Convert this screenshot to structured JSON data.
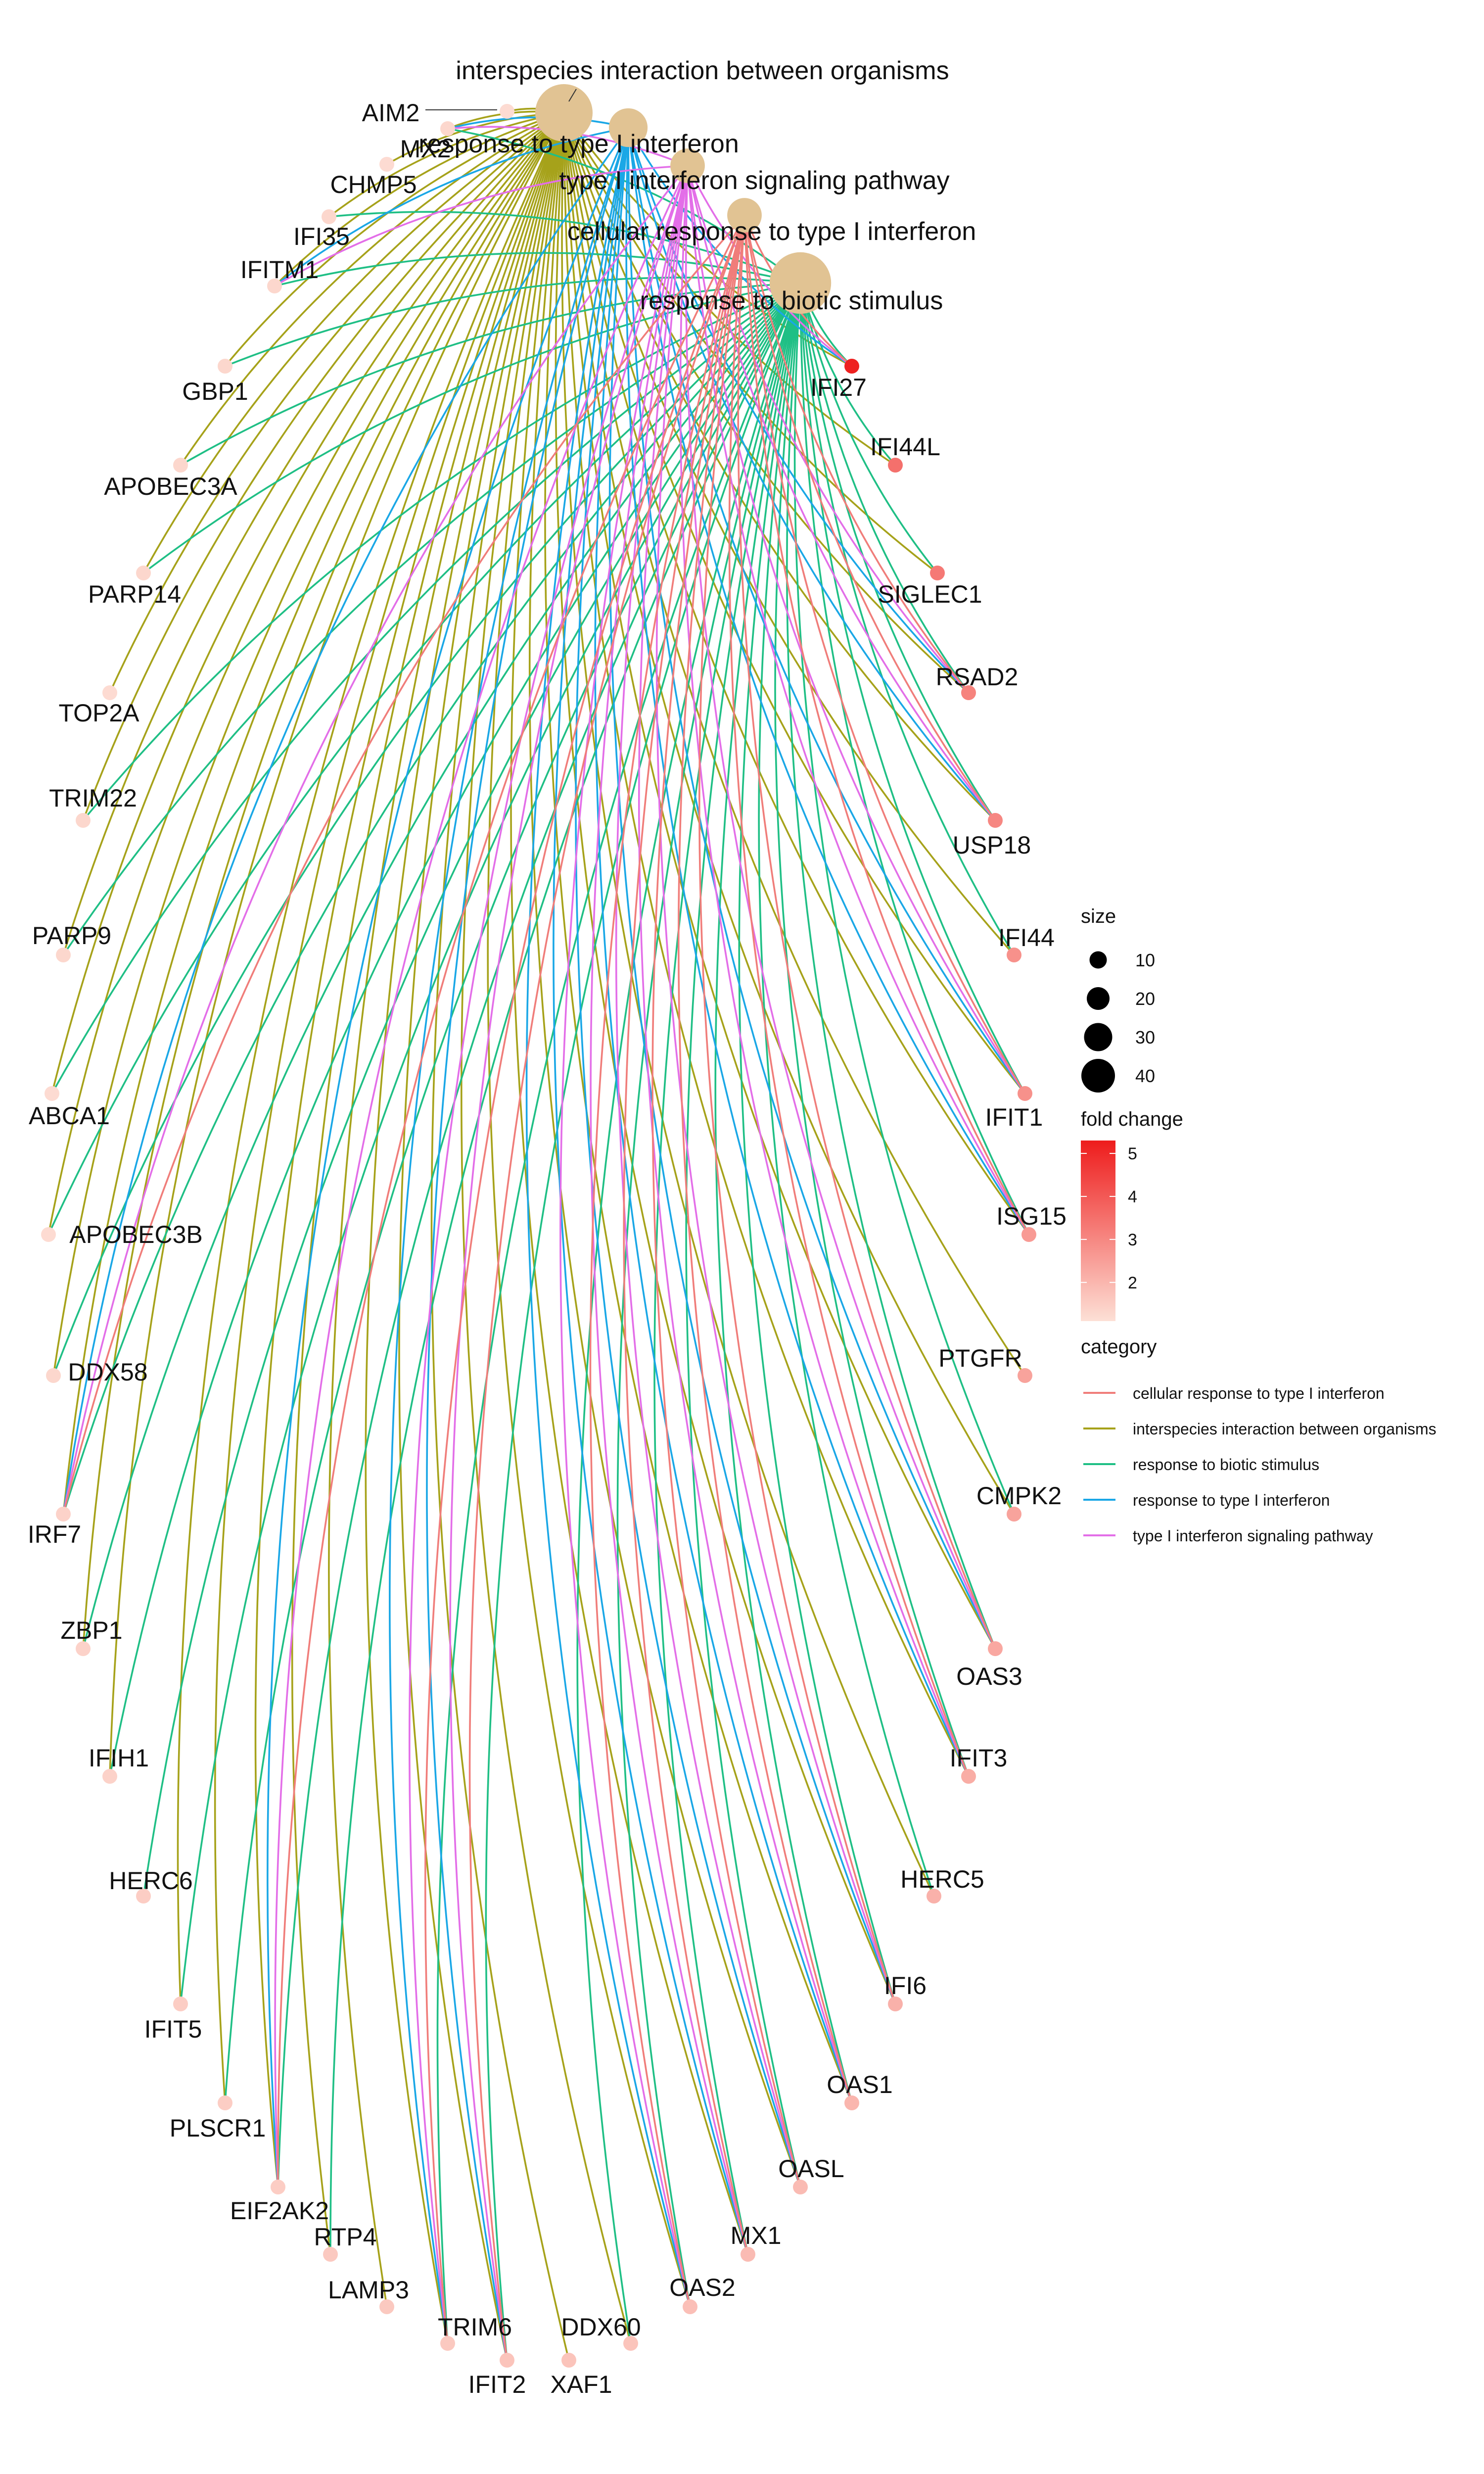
{
  "colors": {
    "cellular response to type I interferon": "#f07d7a",
    "interspecies interaction between organisms": "#a6a21a",
    "response to biotic stimulus": "#1fbf85",
    "response to type I interferon": "#1aa7e6",
    "type I interferon signaling pathway": "#e36ee8",
    "term_node": "#e1c393"
  },
  "terms": [
    {
      "id": "interspecies",
      "name": "interspecies interaction between organisms",
      "size": 40
    },
    {
      "id": "response_type1",
      "name": "response to type I interferon",
      "size": 22
    },
    {
      "id": "signaling",
      "name": "type I interferon signaling pathway",
      "size": 18
    },
    {
      "id": "cellular",
      "name": "cellular response to type I interferon",
      "size": 18
    },
    {
      "id": "biotic",
      "name": "response to biotic stimulus",
      "size": 44
    }
  ],
  "genes": [
    {
      "name": "AIM2",
      "fc": 1.2,
      "terms": [
        "interspecies"
      ]
    },
    {
      "name": "MX2",
      "fc": 1.3,
      "terms": [
        "interspecies",
        "biotic",
        "response_type1",
        "signaling"
      ]
    },
    {
      "name": "CHMP5",
      "fc": 1.2,
      "terms": [
        "interspecies"
      ]
    },
    {
      "name": "IFI35",
      "fc": 1.3,
      "terms": [
        "interspecies",
        "biotic"
      ]
    },
    {
      "name": "IFITM1",
      "fc": 1.3,
      "terms": [
        "interspecies",
        "biotic",
        "response_type1",
        "signaling"
      ]
    },
    {
      "name": "GBP1",
      "fc": 1.3,
      "terms": [
        "interspecies",
        "biotic"
      ]
    },
    {
      "name": "APOBEC3A",
      "fc": 1.3,
      "terms": [
        "interspecies",
        "biotic"
      ]
    },
    {
      "name": "PARP14",
      "fc": 1.3,
      "terms": [
        "interspecies",
        "biotic"
      ]
    },
    {
      "name": "TOP2A",
      "fc": 1.2,
      "terms": [
        "interspecies"
      ]
    },
    {
      "name": "TRIM22",
      "fc": 1.3,
      "terms": [
        "interspecies",
        "biotic"
      ]
    },
    {
      "name": "PARP9",
      "fc": 1.3,
      "terms": [
        "interspecies",
        "biotic"
      ]
    },
    {
      "name": "ABCA1",
      "fc": 1.2,
      "terms": [
        "interspecies",
        "biotic"
      ]
    },
    {
      "name": "APOBEC3B",
      "fc": 1.2,
      "terms": [
        "interspecies",
        "biotic"
      ]
    },
    {
      "name": "DDX58",
      "fc": 1.3,
      "terms": [
        "interspecies",
        "biotic"
      ]
    },
    {
      "name": "IRF7",
      "fc": 1.4,
      "terms": [
        "interspecies",
        "biotic",
        "response_type1",
        "signaling",
        "cellular"
      ]
    },
    {
      "name": "ZBP1",
      "fc": 1.4,
      "terms": [
        "interspecies",
        "biotic"
      ]
    },
    {
      "name": "IFIH1",
      "fc": 1.4,
      "terms": [
        "interspecies",
        "biotic"
      ]
    },
    {
      "name": "HERC6",
      "fc": 1.5,
      "terms": [
        "biotic"
      ]
    },
    {
      "name": "IFIT5",
      "fc": 1.5,
      "terms": [
        "interspecies",
        "biotic"
      ]
    },
    {
      "name": "PLSCR1",
      "fc": 1.5,
      "terms": [
        "interspecies",
        "biotic"
      ]
    },
    {
      "name": "EIF2AK2",
      "fc": 1.5,
      "terms": [
        "interspecies",
        "biotic",
        "response_type1",
        "signaling",
        "cellular"
      ]
    },
    {
      "name": "RTP4",
      "fc": 1.6,
      "terms": [
        "interspecies",
        "biotic"
      ]
    },
    {
      "name": "LAMP3",
      "fc": 1.6,
      "terms": [
        "interspecies"
      ]
    },
    {
      "name": "TRIM6",
      "fc": 1.6,
      "terms": [
        "interspecies",
        "biotic",
        "response_type1",
        "signaling",
        "cellular"
      ]
    },
    {
      "name": "IFIT2",
      "fc": 1.7,
      "terms": [
        "interspecies",
        "biotic",
        "response_type1",
        "signaling",
        "cellular"
      ]
    },
    {
      "name": "XAF1",
      "fc": 1.7,
      "terms": [
        "interspecies"
      ]
    },
    {
      "name": "DDX60",
      "fc": 1.7,
      "terms": [
        "interspecies",
        "biotic"
      ]
    },
    {
      "name": "OAS2",
      "fc": 1.8,
      "terms": [
        "interspecies",
        "biotic",
        "response_type1",
        "signaling",
        "cellular"
      ]
    },
    {
      "name": "MX1",
      "fc": 1.9,
      "terms": [
        "interspecies",
        "biotic",
        "response_type1",
        "signaling",
        "cellular"
      ]
    },
    {
      "name": "OASL",
      "fc": 1.9,
      "terms": [
        "interspecies",
        "biotic",
        "response_type1",
        "signaling",
        "cellular"
      ]
    },
    {
      "name": "OAS1",
      "fc": 2.0,
      "terms": [
        "interspecies",
        "biotic",
        "response_type1",
        "signaling",
        "cellular"
      ]
    },
    {
      "name": "IFI6",
      "fc": 2.1,
      "terms": [
        "interspecies",
        "biotic",
        "response_type1",
        "signaling",
        "cellular"
      ]
    },
    {
      "name": "HERC5",
      "fc": 2.1,
      "terms": [
        "interspecies",
        "biotic"
      ]
    },
    {
      "name": "IFIT3",
      "fc": 2.2,
      "terms": [
        "interspecies",
        "biotic",
        "response_type1",
        "signaling",
        "cellular"
      ]
    },
    {
      "name": "OAS3",
      "fc": 2.3,
      "terms": [
        "interspecies",
        "biotic",
        "response_type1",
        "signaling",
        "cellular"
      ]
    },
    {
      "name": "CMPK2",
      "fc": 2.4,
      "terms": [
        "interspecies",
        "biotic"
      ]
    },
    {
      "name": "PTGFR",
      "fc": 2.4,
      "terms": [
        "interspecies"
      ]
    },
    {
      "name": "ISG15",
      "fc": 2.6,
      "terms": [
        "interspecies",
        "biotic",
        "response_type1",
        "signaling",
        "cellular"
      ]
    },
    {
      "name": "IFIT1",
      "fc": 2.8,
      "terms": [
        "interspecies",
        "biotic",
        "response_type1",
        "signaling",
        "cellular"
      ]
    },
    {
      "name": "IFI44",
      "fc": 2.8,
      "terms": [
        "interspecies",
        "biotic"
      ]
    },
    {
      "name": "USP18",
      "fc": 3.0,
      "terms": [
        "interspecies",
        "biotic",
        "response_type1",
        "signaling",
        "cellular"
      ]
    },
    {
      "name": "RSAD2",
      "fc": 3.1,
      "terms": [
        "interspecies",
        "biotic",
        "response_type1",
        "signaling",
        "cellular"
      ]
    },
    {
      "name": "SIGLEC1",
      "fc": 3.3,
      "terms": [
        "interspecies",
        "biotic"
      ]
    },
    {
      "name": "IFI44L",
      "fc": 3.5,
      "terms": [
        "interspecies",
        "biotic"
      ]
    },
    {
      "name": "IFI27",
      "fc": 5.2,
      "terms": [
        "interspecies",
        "biotic",
        "response_type1",
        "signaling",
        "cellular"
      ]
    }
  ],
  "legend": {
    "size_title": "size",
    "size_values": [
      10,
      20,
      30,
      40
    ],
    "size_labels": [
      "10",
      "20",
      "30",
      "40"
    ],
    "fc_title": "fold change",
    "fc_ticks": [
      2,
      3,
      4,
      5
    ],
    "fc_labels": [
      "2",
      "3",
      "4",
      "5"
    ],
    "fc_range": [
      1.1,
      5.3
    ],
    "fc_low_color": "#fde0d6",
    "fc_high_color": "#ee1c1c",
    "category_title": "category",
    "categories": [
      {
        "name": "cellular response to type I interferon",
        "color": "#f07d7a"
      },
      {
        "name": "interspecies interaction between organisms",
        "color": "#a6a21a"
      },
      {
        "name": "response to biotic stimulus",
        "color": "#1fbf85"
      },
      {
        "name": "response to type I interferon",
        "color": "#1aa7e6"
      },
      {
        "name": "type I interferon signaling pathway",
        "color": "#e36ee8"
      }
    ]
  }
}
